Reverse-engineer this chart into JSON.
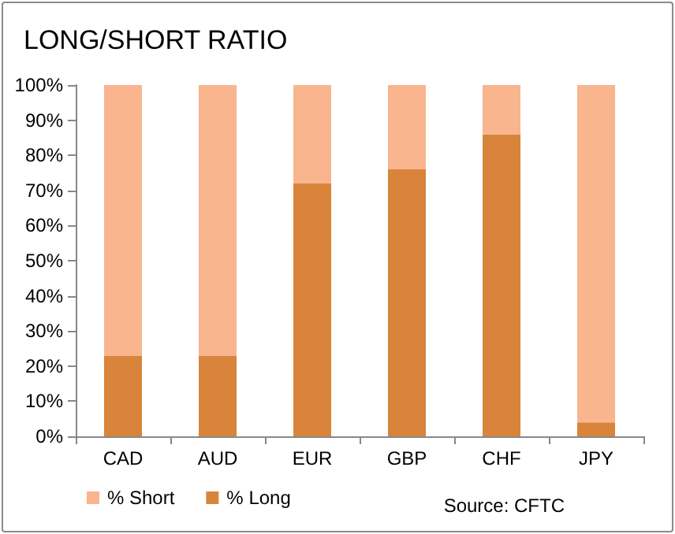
{
  "chart_data": {
    "type": "bar",
    "title": "LONG/SHORT RATIO",
    "categories": [
      "CAD",
      "AUD",
      "EUR",
      "GBP",
      "CHF",
      "JPY"
    ],
    "stacked": true,
    "series": [
      {
        "name": "% Long",
        "color": "#d9843b",
        "values": [
          23,
          23,
          72,
          76,
          86,
          4
        ]
      },
      {
        "name": "% Short",
        "color": "#f8b58e",
        "values": [
          77,
          77,
          28,
          24,
          14,
          96
        ]
      }
    ],
    "ylim": [
      0,
      100
    ],
    "yticks": [
      {
        "value": 0,
        "label": "0%"
      },
      {
        "value": 10,
        "label": "10%"
      },
      {
        "value": 20,
        "label": "20%"
      },
      {
        "value": 30,
        "label": "30%"
      },
      {
        "value": 40,
        "label": "40%"
      },
      {
        "value": 50,
        "label": "50%"
      },
      {
        "value": 60,
        "label": "60%"
      },
      {
        "value": 70,
        "label": "70%"
      },
      {
        "value": 80,
        "label": "80%"
      },
      {
        "value": 90,
        "label": "90%"
      },
      {
        "value": 100,
        "label": "100%"
      }
    ],
    "grid": false,
    "legend": "bottom left",
    "annotations": [
      "Source: CFTC"
    ]
  }
}
